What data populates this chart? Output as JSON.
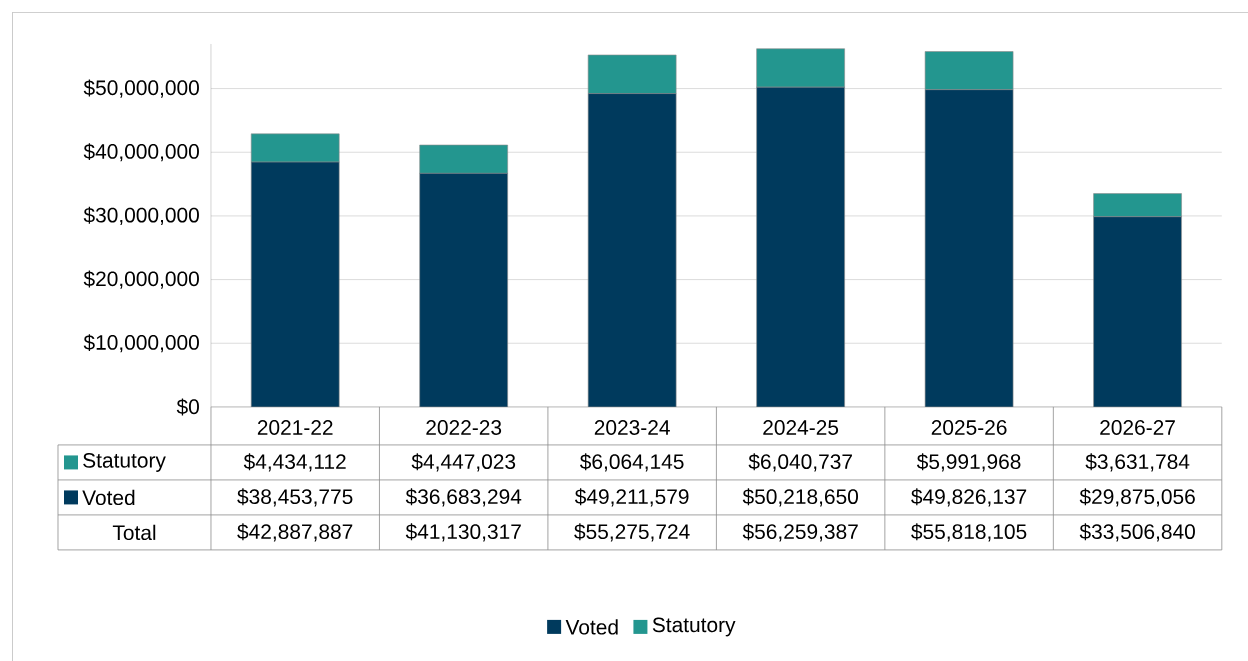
{
  "chart_data": {
    "type": "bar",
    "stacked": true,
    "categories": [
      "2021-22",
      "2022-23",
      "2023-24",
      "2024-25",
      "2025-26",
      "2026-27"
    ],
    "series": [
      {
        "name": "Voted",
        "color": "#003a5d",
        "values": [
          38453775,
          36683294,
          49211579,
          50218650,
          49826137,
          29875056
        ],
        "value_labels": [
          "$38,453,775",
          "$36,683,294",
          "$49,211,579",
          "$50,218,650",
          "$49,826,137",
          "$29,875,056"
        ]
      },
      {
        "name": "Statutory",
        "color": "#23968f",
        "values": [
          4434112,
          4447023,
          6064145,
          6040737,
          5991968,
          3631784
        ],
        "value_labels": [
          "$4,434,112",
          "$4,447,023",
          "$6,064,145",
          "$6,040,737",
          "$5,991,968",
          "$3,631,784"
        ]
      }
    ],
    "annotations": [
      "Total",
      "$42,887,887",
      "$41,130,317",
      "$55,275,724",
      "$56,259,387",
      "$55,818,105",
      "$33,506,840"
    ],
    "ylim": [
      0,
      57000000
    ],
    "yticks": [
      {
        "value": 0,
        "label": "$0"
      },
      {
        "value": 10000000,
        "label": "$10,000,000"
      },
      {
        "value": 20000000,
        "label": "$20,000,000"
      },
      {
        "value": 30000000,
        "label": "$30,000,000"
      },
      {
        "value": 40000000,
        "label": "$40,000,000"
      },
      {
        "value": 50000000,
        "label": "$50,000,000"
      }
    ],
    "grid": "y",
    "legend": "bottom"
  }
}
